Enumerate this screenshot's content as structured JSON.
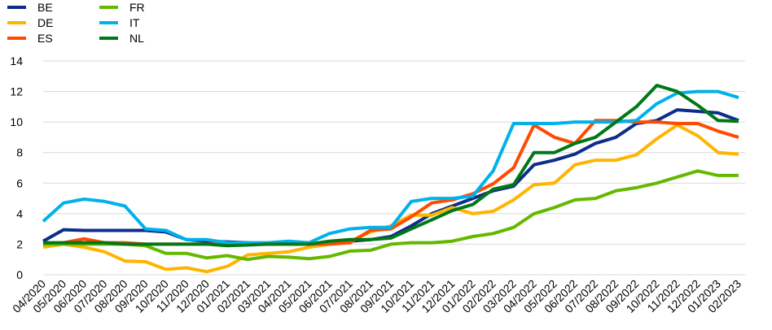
{
  "chart_data": {
    "type": "line",
    "title": "",
    "xlabel": "",
    "ylabel": "",
    "ylim": [
      0,
      14
    ],
    "yticks": [
      0,
      2,
      4,
      6,
      8,
      10,
      12,
      14
    ],
    "grid": "horizontal",
    "legend_position": "top-left",
    "categories": [
      "04/2020",
      "05/2020",
      "06/2020",
      "07/2020",
      "08/2020",
      "09/2020",
      "10/2020",
      "11/2020",
      "12/2020",
      "01/2021",
      "02/2021",
      "03/2021",
      "04/2021",
      "05/2021",
      "06/2021",
      "07/2021",
      "08/2021",
      "09/2021",
      "10/2021",
      "11/2021",
      "12/2021",
      "01/2022",
      "02/2022",
      "03/2022",
      "04/2022",
      "05/2022",
      "06/2022",
      "07/2022",
      "08/2022",
      "09/2022",
      "10/2022",
      "11/2022",
      "12/2022",
      "01/2023",
      "02/2023"
    ],
    "series": [
      {
        "name": "BE",
        "color": "#0d2d8a",
        "values": [
          2.2,
          2.95,
          2.9,
          2.9,
          2.9,
          2.9,
          2.8,
          2.3,
          2.2,
          2.15,
          2.1,
          2.0,
          2.0,
          2.0,
          2.1,
          2.2,
          2.3,
          2.5,
          3.2,
          4.0,
          4.5,
          5.0,
          5.5,
          5.8,
          7.2,
          7.5,
          7.9,
          8.6,
          9.0,
          9.9,
          10.1,
          10.8,
          10.7,
          10.6,
          10.1
        ]
      },
      {
        "name": "DE",
        "color": "#ffb400",
        "values": [
          1.8,
          2.0,
          1.8,
          1.5,
          0.9,
          0.85,
          0.35,
          0.45,
          0.2,
          0.55,
          1.3,
          1.4,
          1.5,
          1.8,
          2.0,
          2.2,
          2.8,
          3.2,
          3.9,
          3.9,
          4.4,
          4.0,
          4.15,
          4.9,
          5.9,
          6.0,
          7.2,
          7.5,
          7.5,
          7.85,
          8.9,
          9.8,
          9.1,
          8.0,
          7.9
        ]
      },
      {
        "name": "ES",
        "color": "#ff4b00",
        "values": [
          2.0,
          2.1,
          2.35,
          2.1,
          2.1,
          2.0,
          2.0,
          2.0,
          2.0,
          2.0,
          2.0,
          2.0,
          2.0,
          2.0,
          2.0,
          2.1,
          2.9,
          3.0,
          3.8,
          4.7,
          4.9,
          5.3,
          5.95,
          7.0,
          9.8,
          9.0,
          8.6,
          10.1,
          10.1,
          10.0,
          10.0,
          9.9,
          9.9,
          9.4,
          9.0
        ]
      },
      {
        "name": "FR",
        "color": "#65b800",
        "values": [
          2.0,
          2.0,
          2.0,
          2.0,
          2.0,
          1.9,
          1.4,
          1.4,
          1.1,
          1.25,
          1.0,
          1.2,
          1.15,
          1.05,
          1.2,
          1.55,
          1.6,
          2.0,
          2.1,
          2.1,
          2.2,
          2.5,
          2.7,
          3.1,
          4.0,
          4.4,
          4.9,
          5.0,
          5.5,
          5.7,
          6.0,
          6.4,
          6.8,
          6.5,
          6.5
        ]
      },
      {
        "name": "IT",
        "color": "#00b1ea",
        "values": [
          3.5,
          4.7,
          4.95,
          4.8,
          4.5,
          3.0,
          2.9,
          2.3,
          2.3,
          2.1,
          2.1,
          2.1,
          2.2,
          2.1,
          2.7,
          3.0,
          3.1,
          3.1,
          4.8,
          5.0,
          5.0,
          5.15,
          6.8,
          9.9,
          9.9,
          9.9,
          10.0,
          10.0,
          10.0,
          10.1,
          11.2,
          11.9,
          12.0,
          12.0,
          11.6
        ]
      },
      {
        "name": "NL",
        "color": "#007816",
        "values": [
          2.1,
          2.1,
          2.1,
          2.1,
          2.0,
          2.0,
          2.0,
          2.0,
          2.0,
          1.9,
          1.95,
          2.0,
          2.0,
          2.0,
          2.2,
          2.3,
          2.3,
          2.4,
          3.0,
          3.6,
          4.2,
          4.6,
          5.6,
          5.9,
          8.0,
          8.0,
          8.6,
          9.0,
          10.0,
          11.0,
          12.4,
          12.0,
          11.1,
          10.1,
          10.05
        ]
      }
    ]
  }
}
